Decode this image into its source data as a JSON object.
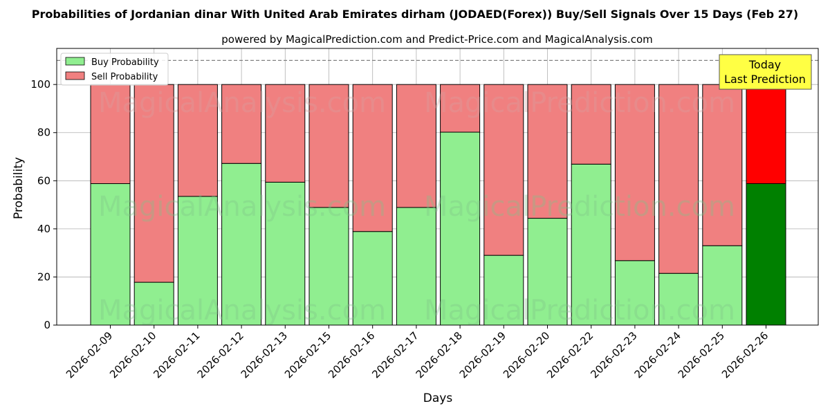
{
  "chart_data": {
    "type": "bar",
    "stacked": true,
    "title": "Probabilities of Jordanian dinar With United Arab Emirates dirham (JODAED(Forex)) Buy/Sell Signals Over 15 Days (Feb 27)",
    "subtitle": "powered by MagicalPrediction.com and Predict-Price.com and MagicalAnalysis.com",
    "xlabel": "Days",
    "ylabel": "Probability",
    "ylim": [
      0,
      115
    ],
    "yticks": [
      0,
      20,
      40,
      60,
      80,
      100
    ],
    "grid": true,
    "legend_position": "top-left",
    "reference_line": 110,
    "categories": [
      "2026-02-09",
      "2026-02-10",
      "2026-02-11",
      "2026-02-12",
      "2026-02-13",
      "2026-02-15",
      "2026-02-16",
      "2026-02-17",
      "2026-02-18",
      "2026-02-19",
      "2026-02-20",
      "2026-02-22",
      "2026-02-23",
      "2026-02-24",
      "2026-02-25",
      "2026-02-26"
    ],
    "series": [
      {
        "name": "Buy Probability",
        "color": "#90ee90",
        "values": [
          58.8,
          17.8,
          53.5,
          67.2,
          59.4,
          48.9,
          38.9,
          48.9,
          80.2,
          29.0,
          44.4,
          66.9,
          26.8,
          21.5,
          33.0,
          58.8
        ]
      },
      {
        "name": "Sell Probability",
        "color": "#f08080",
        "values": [
          41.2,
          82.2,
          46.5,
          32.8,
          40.6,
          51.1,
          61.1,
          51.1,
          19.8,
          71.0,
          55.6,
          33.1,
          73.2,
          78.5,
          67.0,
          41.2
        ]
      }
    ],
    "highlight": {
      "index": 15,
      "buy_color": "#008000",
      "sell_color": "#ff0000"
    },
    "annotation": {
      "line1": "Today",
      "line2": "Last Prediction",
      "color": "#ffff44"
    },
    "watermarks": [
      "MagicalAnalysis.com",
      "MagicalPrediction.com"
    ]
  }
}
